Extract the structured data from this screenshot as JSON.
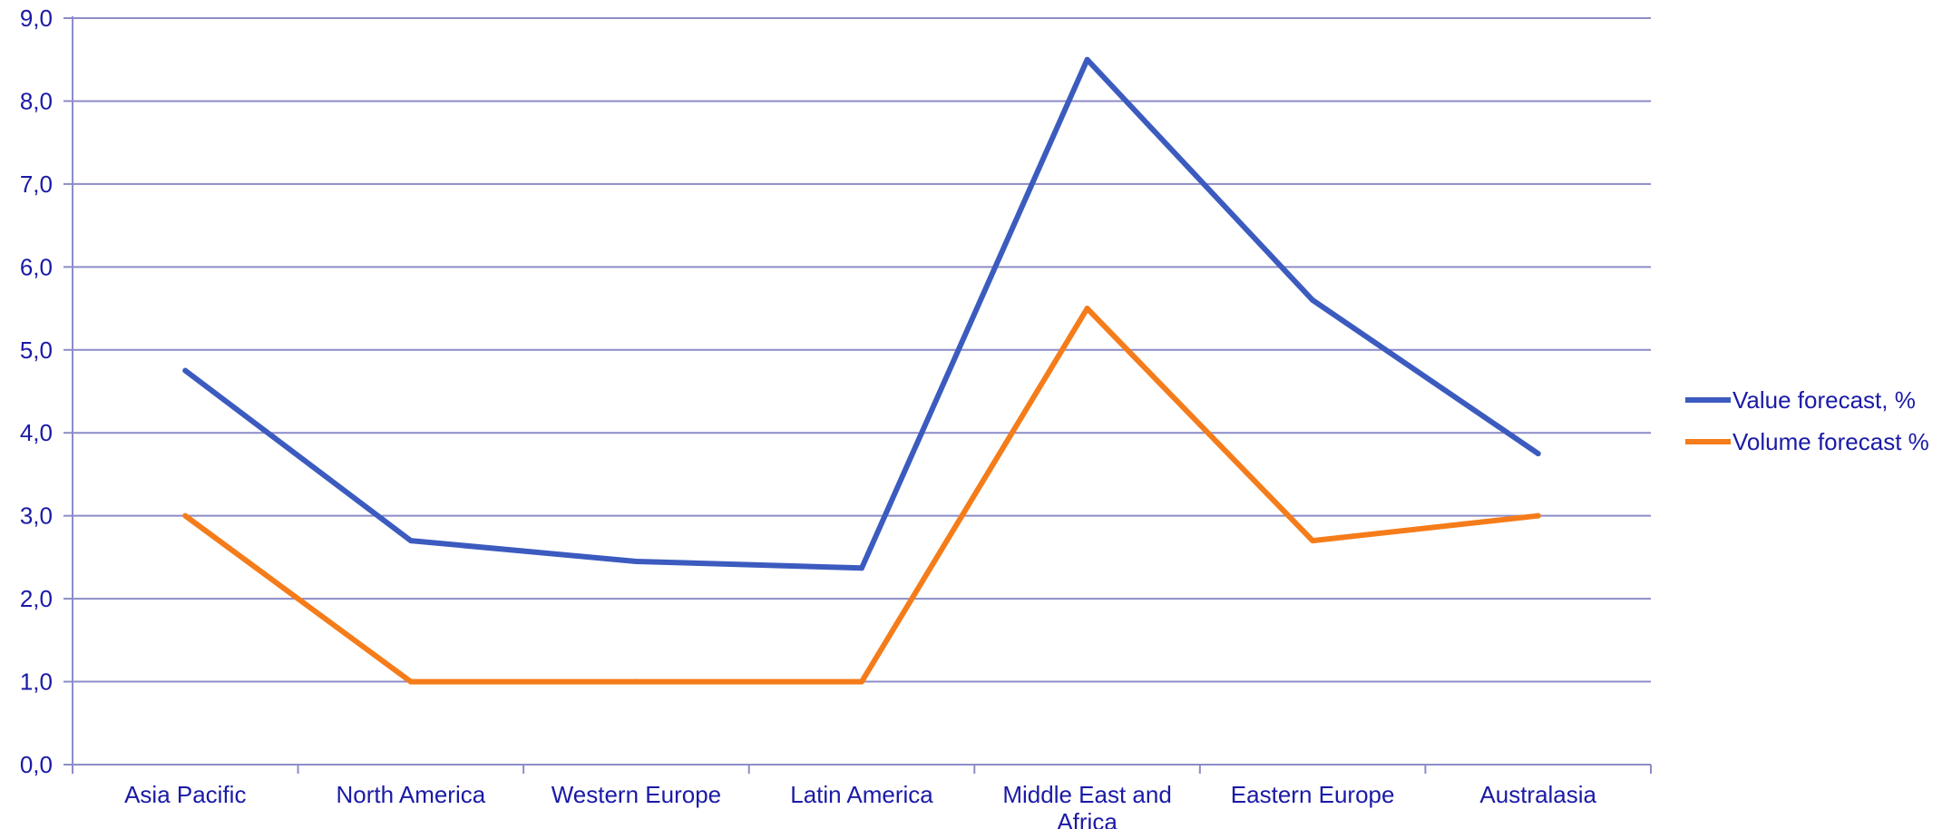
{
  "chart_data": {
    "type": "line",
    "categories": [
      "Asia Pacific",
      "North America",
      "Western Europe",
      "Latin America",
      "Middle East and Africa",
      "Eastern Europe",
      "Australasia"
    ],
    "series": [
      {
        "name": "Value forecast, %",
        "color": "#3c5bbf",
        "values": [
          4.75,
          2.7,
          2.45,
          2.37,
          8.5,
          5.6,
          3.75
        ]
      },
      {
        "name": "Volume forecast %",
        "color": "#f57c1a",
        "values": [
          3.0,
          1.0,
          1.0,
          1.0,
          5.5,
          2.7,
          3.0
        ]
      }
    ],
    "ylim": [
      0,
      9
    ],
    "yticks": [
      "0,0",
      "1,0",
      "2,0",
      "3,0",
      "4,0",
      "5,0",
      "6,0",
      "7,0",
      "8,0",
      "9,0"
    ],
    "grid": true,
    "legend": "right"
  }
}
